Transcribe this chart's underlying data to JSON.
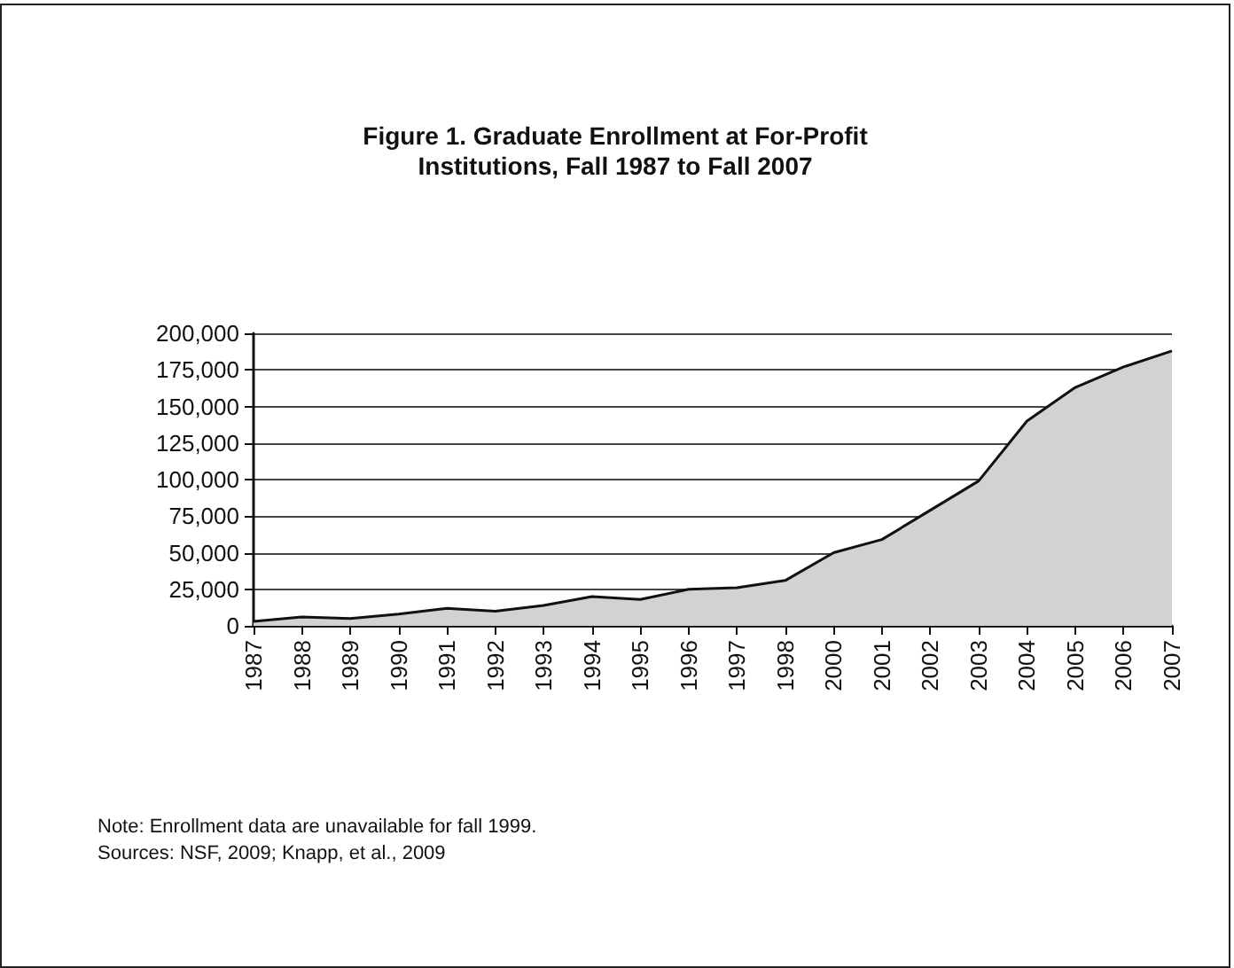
{
  "chart_data": {
    "type": "area",
    "title": "Figure 1. Graduate Enrollment at For-Profit\nInstitutions, Fall 1987 to Fall 2007",
    "categories": [
      "1987",
      "1988",
      "1989",
      "1990",
      "1991",
      "1992",
      "1993",
      "1994",
      "1995",
      "1996",
      "1997",
      "1998",
      "2000",
      "2001",
      "2002",
      "2003",
      "2004",
      "2005",
      "2006",
      "2007"
    ],
    "series": [
      {
        "color": "#d1d2d4",
        "values": [
          3000,
          6000,
          5000,
          8000,
          12000,
          10000,
          14000,
          20000,
          18000,
          25000,
          26000,
          31000,
          50000,
          59000,
          79000,
          99000,
          140000,
          163000,
          177000,
          188000
        ]
      }
    ],
    "ylim": [
      0,
      200000
    ],
    "yticks": [
      0,
      {
        "value": 25000,
        "label": "25,000"
      },
      {
        "value": 50000,
        "label": "50,000"
      },
      {
        "value": 75000,
        "label": "75,000"
      },
      {
        "value": 100000,
        "label": "100,000"
      },
      {
        "value": 125000,
        "label": "125,000"
      },
      {
        "value": 150000,
        "label": "150,000"
      },
      {
        "value": 175000,
        "label": "175,000"
      },
      {
        "value": 200000,
        "label": "200,000"
      }
    ],
    "grid": "y",
    "marker": "none",
    "line_style": "solid",
    "annotations": [
      "Note: Enrollment data are unavailable for fall 1999.",
      "Sources: NSF, 2009; Knapp, et al., 2009"
    ]
  }
}
